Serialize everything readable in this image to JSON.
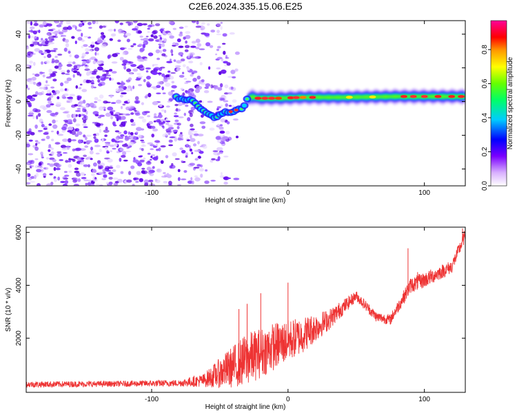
{
  "title": "C2E6.2024.335.15.06.E25",
  "chart_data": [
    {
      "type": "heatmap",
      "xlabel": "Height of straight line (km)",
      "ylabel": "Frequency (Hz)",
      "xlim": [
        -192,
        130
      ],
      "ylim": [
        -50,
        48
      ],
      "x_ticks": [
        -100,
        0,
        100
      ],
      "y_ticks": [
        -40,
        -20,
        0,
        20,
        40
      ],
      "colorbar": {
        "label": "Normalized spectral amplitude",
        "range": [
          0,
          0.97
        ],
        "ticks": [
          0.0,
          0.2,
          0.4,
          0.6,
          0.8
        ],
        "tick_labels": [
          "0.0",
          "0.2",
          "0.4",
          "0.6",
          "0.8"
        ],
        "colormap": "rainbow: white, violet, blue, cyan, green, yellow, orange, red, magenta"
      },
      "ridge": {
        "description": "dominant frequency line",
        "points": [
          [
            -82,
            3
          ],
          [
            -75,
            1
          ],
          [
            -70,
            0
          ],
          [
            -65,
            -3
          ],
          [
            -60,
            -6
          ],
          [
            -55,
            -8
          ],
          [
            -52,
            -10
          ],
          [
            -48,
            -7
          ],
          [
            -42,
            -6
          ],
          [
            -38,
            -5
          ],
          [
            -33,
            -3
          ],
          [
            -30,
            1
          ],
          [
            -27,
            3
          ],
          [
            -22,
            2
          ],
          [
            -15,
            2
          ],
          [
            -5,
            2
          ],
          [
            10,
            2.5
          ],
          [
            40,
            2.5
          ],
          [
            80,
            3
          ],
          [
            130,
            3
          ]
        ]
      }
    },
    {
      "type": "line",
      "xlabel": "Height of straight line (km)",
      "ylabel": "SNR (10 * v/v)",
      "xlim": [
        -192,
        130
      ],
      "ylim": [
        -50,
        6200
      ],
      "x_ticks": [
        -100,
        0,
        100
      ],
      "y_ticks": [
        2000,
        4000,
        6000
      ],
      "color": "#ee3333",
      "envelope": [
        {
          "x": -192,
          "mean": 250,
          "amp": 120
        },
        {
          "x": -130,
          "mean": 270,
          "amp": 110
        },
        {
          "x": -80,
          "mean": 300,
          "amp": 130
        },
        {
          "x": -62,
          "mean": 400,
          "amp": 250
        },
        {
          "x": -45,
          "mean": 800,
          "amp": 700
        },
        {
          "x": -30,
          "mean": 1200,
          "amp": 1000
        },
        {
          "x": -10,
          "mean": 1700,
          "amp": 900
        },
        {
          "x": 10,
          "mean": 2100,
          "amp": 700
        },
        {
          "x": 30,
          "mean": 2700,
          "amp": 400
        },
        {
          "x": 50,
          "mean": 3600,
          "amp": 200
        },
        {
          "x": 65,
          "mean": 2800,
          "amp": 200
        },
        {
          "x": 75,
          "mean": 2700,
          "amp": 200
        },
        {
          "x": 90,
          "mean": 4000,
          "amp": 300
        },
        {
          "x": 100,
          "mean": 4200,
          "amp": 300
        },
        {
          "x": 120,
          "mean": 4700,
          "amp": 250
        },
        {
          "x": 130,
          "mean": 5900,
          "amp": 250
        }
      ],
      "spikes": [
        [
          -36,
          3100
        ],
        [
          -30,
          3300
        ],
        [
          -20,
          3700
        ],
        [
          0,
          4100
        ],
        [
          88,
          5400
        ],
        [
          95,
          4500
        ],
        [
          128,
          6150
        ]
      ]
    }
  ]
}
